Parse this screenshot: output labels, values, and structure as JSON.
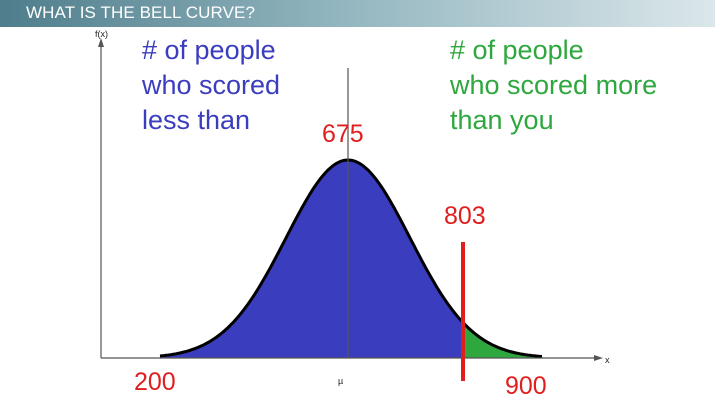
{
  "header": {
    "title": "WHAT IS THE BELL CURVE?"
  },
  "graph": {
    "y_axis_label": "f(x)",
    "x_axis_label": "x",
    "mean_symbol": "µ",
    "peak_value": "675",
    "marker_value": "803",
    "min_value": "200",
    "max_value": "900"
  },
  "annotations": {
    "below": [
      "# of people",
      "who scored",
      "less than"
    ],
    "above": [
      "# of people",
      "who scored more",
      "than you"
    ]
  },
  "colors": {
    "title_bar_start": "#4f7d8b",
    "title_bar_end": "#dbe7ea",
    "below_fill": "#3b3dbf",
    "above_fill": "#2ea83e",
    "marker": "#e01e1e",
    "curve": "#000000"
  }
}
